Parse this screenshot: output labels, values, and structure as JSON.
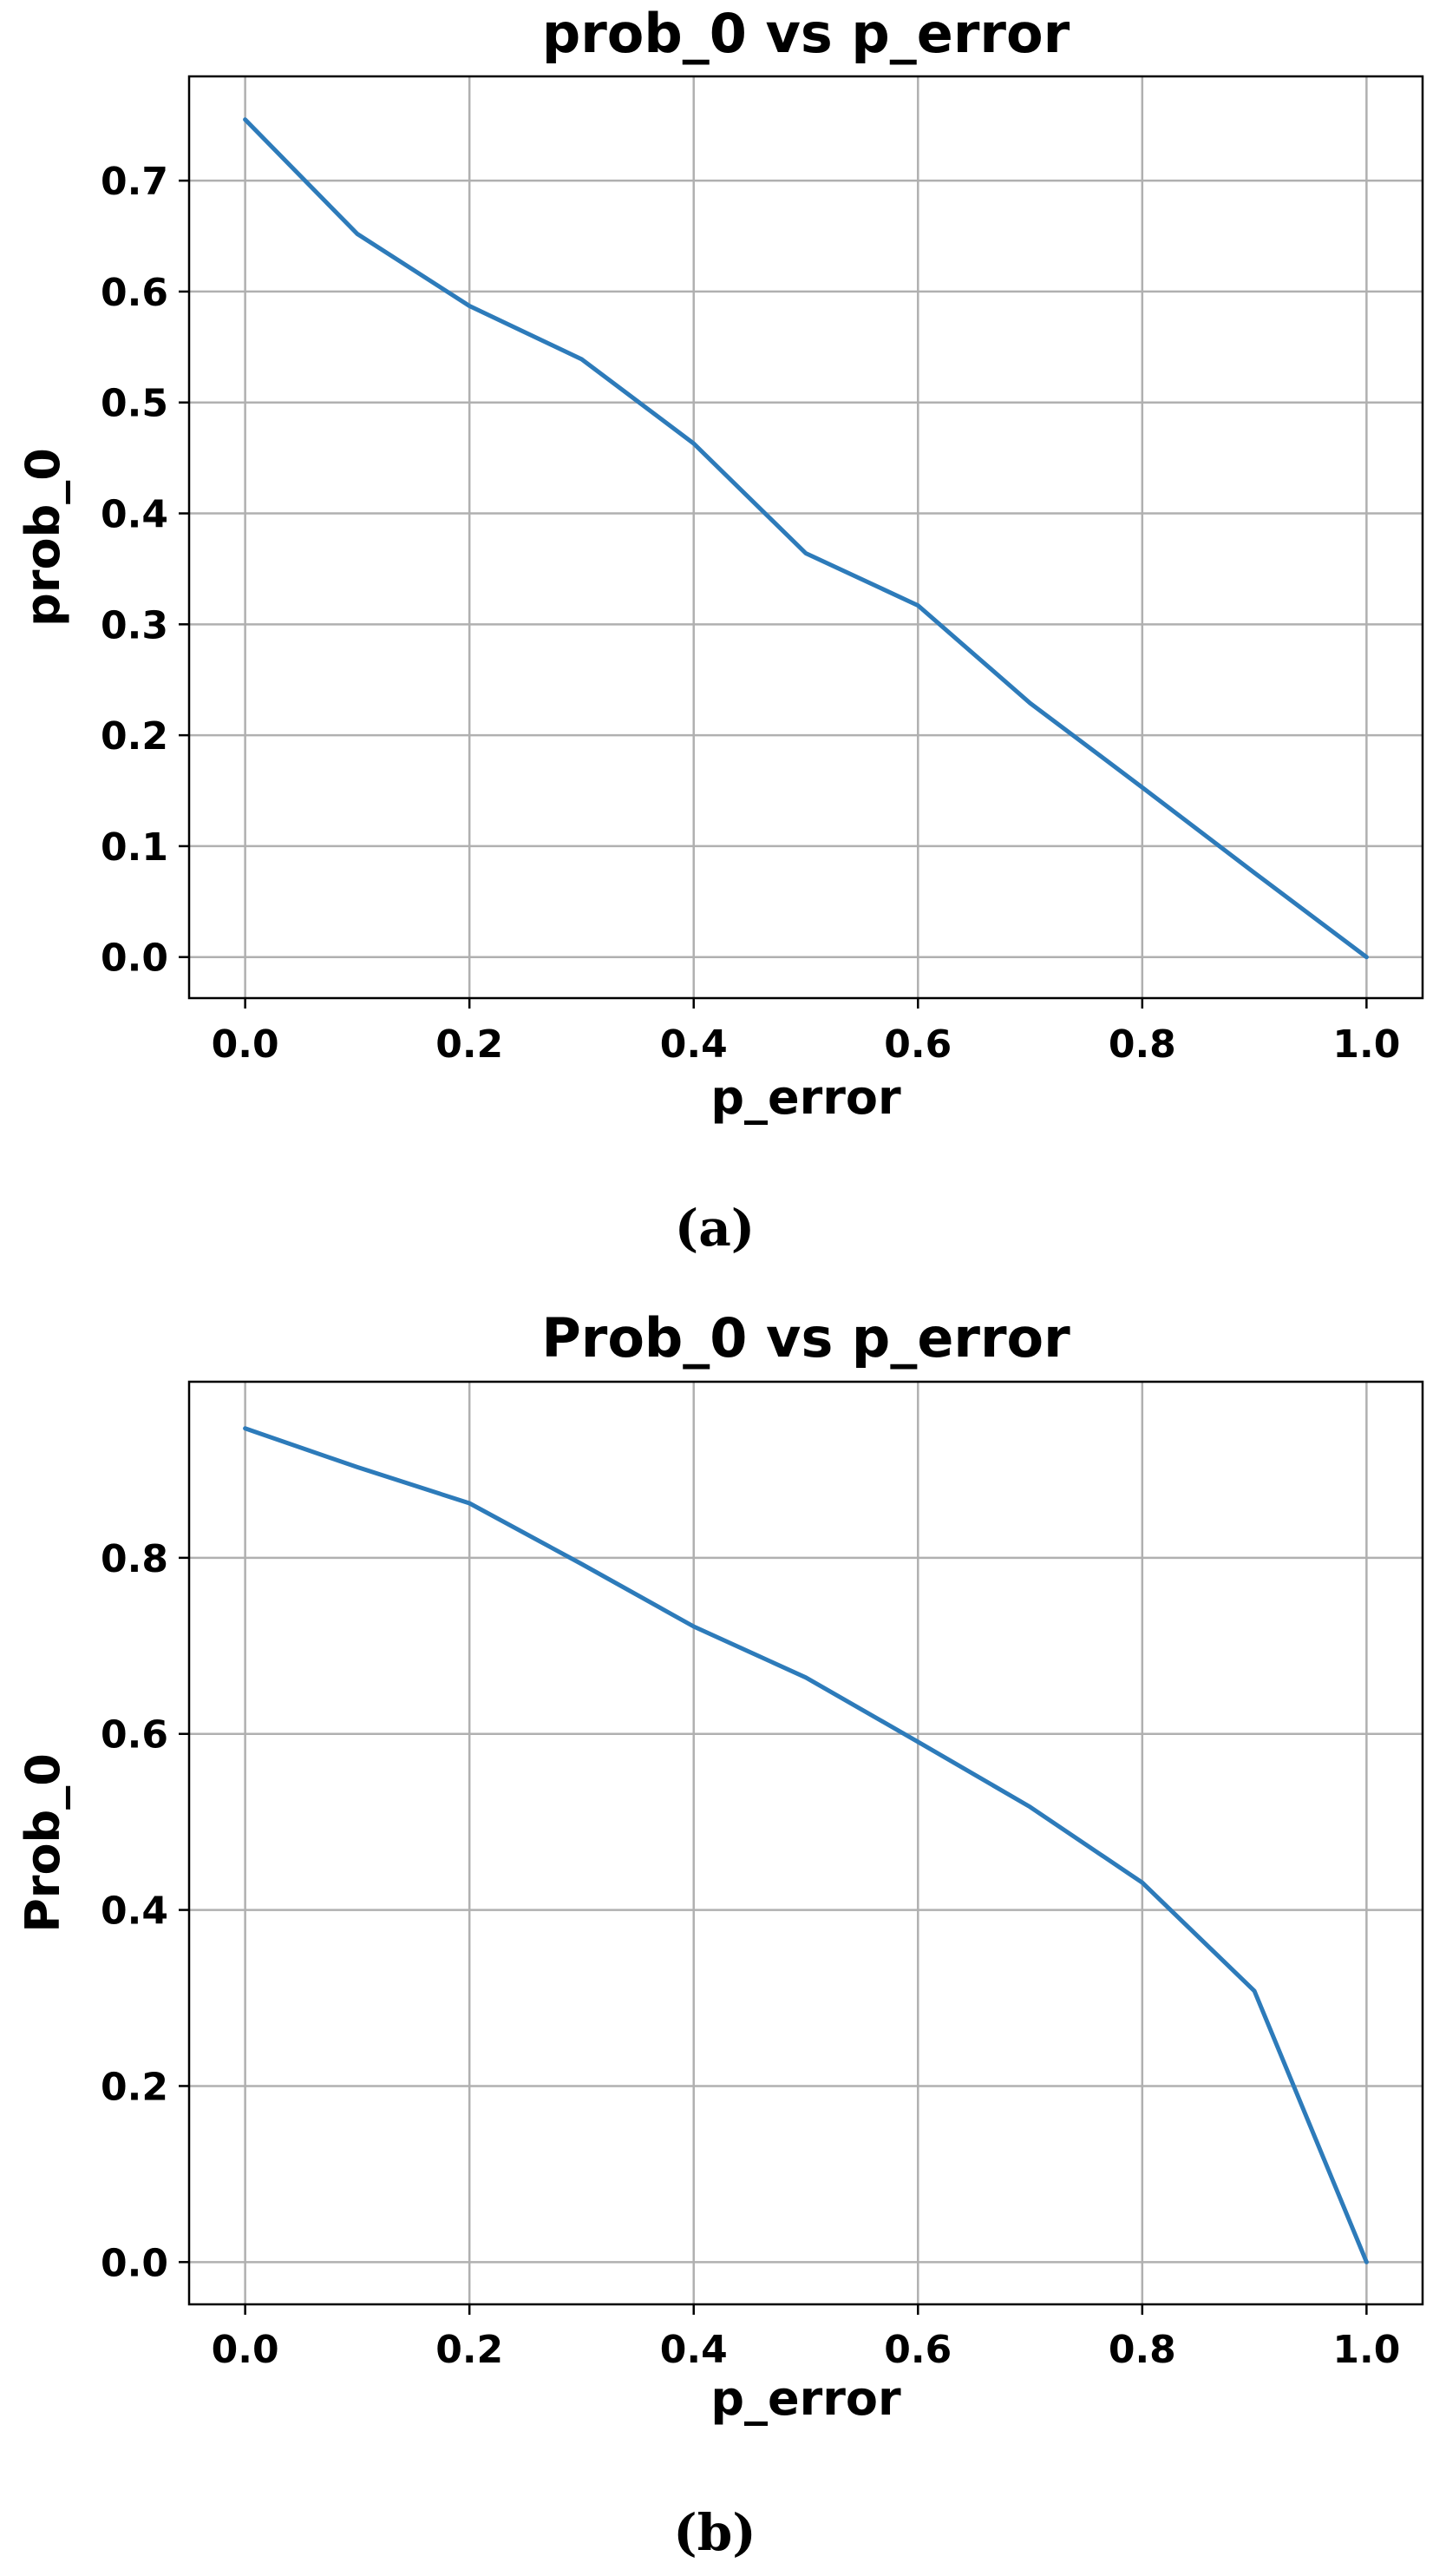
{
  "figure": {
    "panels": [
      {
        "caption": "(a)"
      },
      {
        "caption": "(b)"
      }
    ]
  },
  "chart_data": [
    {
      "type": "line",
      "title": "prob_0 vs p_error",
      "xlabel": "p_error",
      "ylabel": "prob_0",
      "xlim": [
        -0.05,
        1.05
      ],
      "ylim": [
        -0.037,
        0.794
      ],
      "xticks": [
        0.0,
        0.2,
        0.4,
        0.6,
        0.8,
        1.0
      ],
      "xtick_labels": [
        "0.0",
        "0.2",
        "0.4",
        "0.6",
        "0.8",
        "1.0"
      ],
      "yticks": [
        0.0,
        0.1,
        0.2,
        0.3,
        0.4,
        0.5,
        0.6,
        0.7
      ],
      "ytick_labels": [
        "0.0",
        "0.1",
        "0.2",
        "0.3",
        "0.4",
        "0.5",
        "0.6",
        "0.7"
      ],
      "grid": true,
      "series": [
        {
          "color": "#2d7bba",
          "x": [
            0.0,
            0.1,
            0.2,
            0.3,
            0.4,
            0.5,
            0.6,
            0.7,
            0.8,
            0.9,
            1.0
          ],
          "y": [
            0.755,
            0.652,
            0.587,
            0.539,
            0.463,
            0.364,
            0.317,
            0.229,
            0.153,
            0.076,
            0.0
          ]
        }
      ]
    },
    {
      "type": "line",
      "title": "Prob_0 vs p_error",
      "xlabel": "p_error",
      "ylabel": "Prob_0",
      "xlim": [
        -0.05,
        1.05
      ],
      "ylim": [
        -0.048,
        1.0
      ],
      "xticks": [
        0.0,
        0.2,
        0.4,
        0.6,
        0.8,
        1.0
      ],
      "xtick_labels": [
        "0.0",
        "0.2",
        "0.4",
        "0.6",
        "0.8",
        "1.0"
      ],
      "yticks": [
        0.0,
        0.2,
        0.4,
        0.6,
        0.8
      ],
      "ytick_labels": [
        "0.0",
        "0.2",
        "0.4",
        "0.6",
        "0.8"
      ],
      "grid": true,
      "series": [
        {
          "color": "#2d7bba",
          "x": [
            0.0,
            0.1,
            0.2,
            0.3,
            0.4,
            0.5,
            0.6,
            0.7,
            0.8,
            0.9,
            1.0
          ],
          "y": [
            0.947,
            0.903,
            0.862,
            0.793,
            0.722,
            0.664,
            0.591,
            0.517,
            0.431,
            0.308,
            0.0
          ]
        }
      ]
    }
  ]
}
